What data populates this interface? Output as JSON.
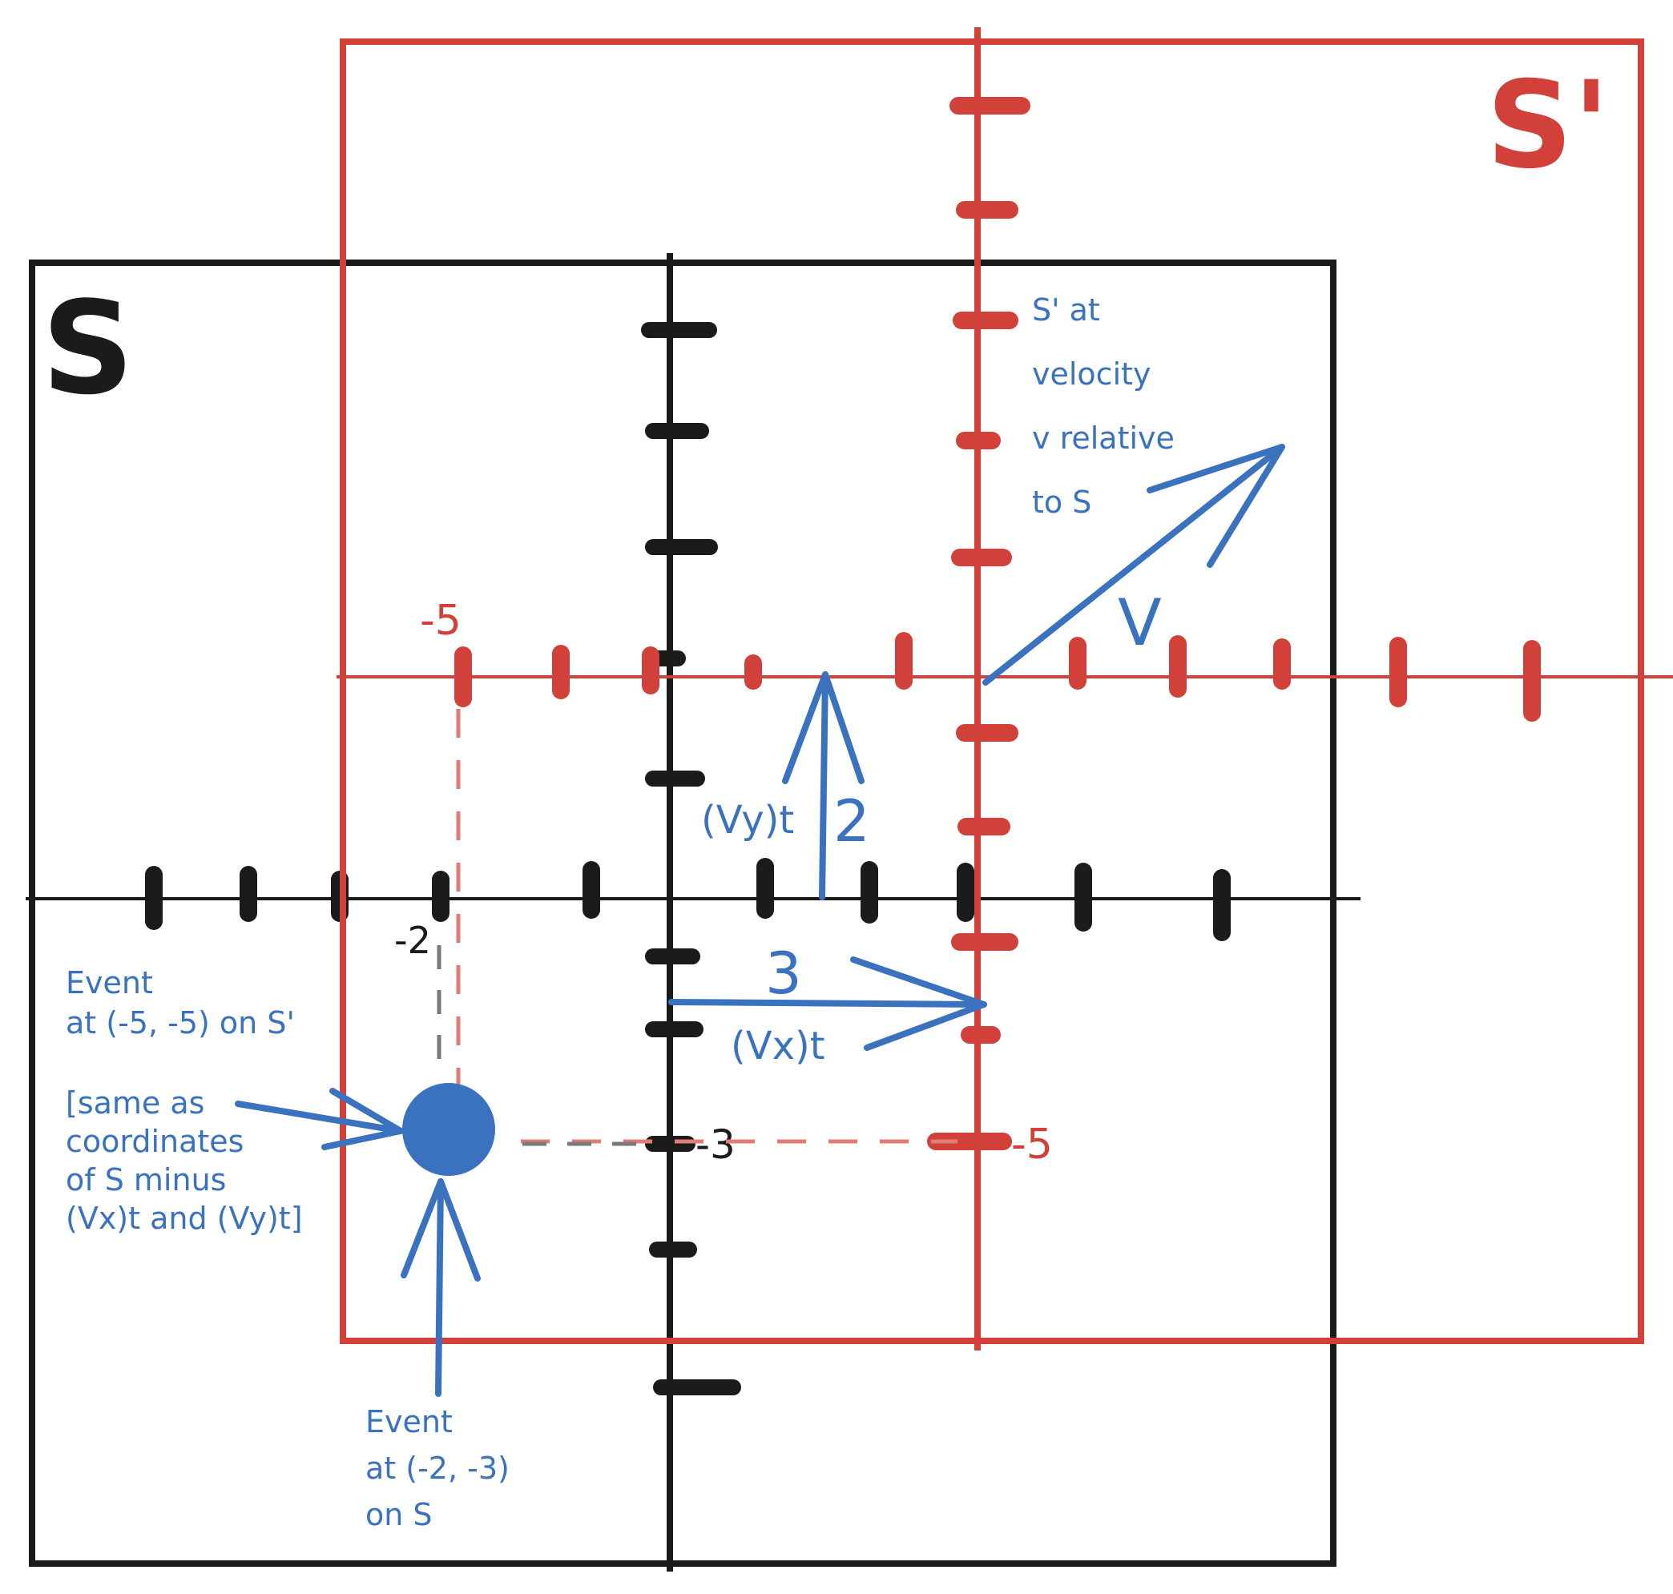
{
  "colors": {
    "frame_s": "#1b1b1b",
    "frame_s_prime": "#d24139",
    "annotation": "#3a72bf",
    "dash_s_prime": "#e07d78",
    "dash_s": "#7a7a7a",
    "background": "#ffffff"
  },
  "frames": {
    "s": {
      "label": "S"
    },
    "s_prime": {
      "label": "S'"
    }
  },
  "labels": {
    "s_x_minus2": "-2",
    "s_y_minus3": "-3",
    "sp_x_minus5": "-5",
    "sp_y_minus5": "-5"
  },
  "vectors": {
    "velocity_label": "V",
    "vy_label": "(Vy)t",
    "vy_value": "2",
    "vx_value": "3",
    "vx_label": "(Vx)t"
  },
  "notes": {
    "velocity_note": [
      "S' at",
      "velocity",
      "v relative",
      "to S"
    ],
    "event_s_prime_note": [
      "Event",
      "at (-5, -5) on S'"
    ],
    "same_as_note": [
      "[same as",
      "coordinates",
      "of S minus",
      "(Vx)t and (Vy)t]"
    ],
    "event_s_note": [
      "Event",
      "at (-2, -3)",
      "on S"
    ]
  },
  "event_point": {
    "s_coords": [
      -2,
      -3
    ],
    "s_prime_coords": [
      -5,
      -5
    ]
  }
}
